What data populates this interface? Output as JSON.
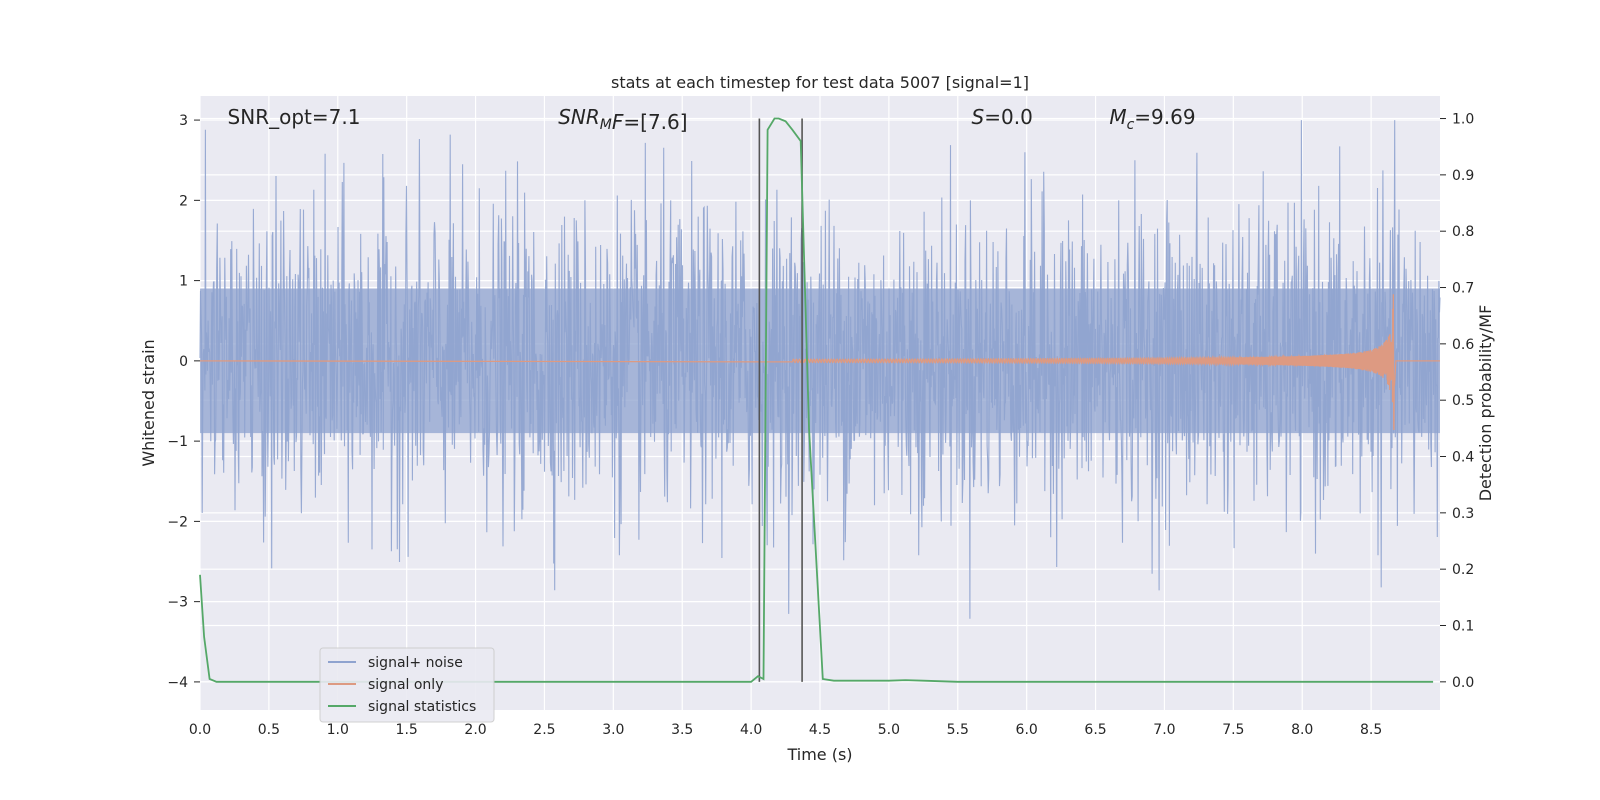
{
  "chart_data": {
    "type": "line",
    "title": "stats at each timestep for test data 5007 [signal=1]",
    "xlabel": "Time (s)",
    "ylabel_left": "Whitened strain",
    "ylabel_right": "Detection probability/MF",
    "xlim": [
      0,
      9.0
    ],
    "ylim_left": [
      -4.35,
      3.3
    ],
    "ylim_right": [
      -0.05,
      1.04
    ],
    "x_ticks": [
      0.0,
      0.5,
      1.0,
      1.5,
      2.0,
      2.5,
      3.0,
      3.5,
      4.0,
      4.5,
      5.0,
      5.5,
      6.0,
      6.5,
      7.0,
      7.5,
      8.0,
      8.5
    ],
    "x_tick_labels": [
      "0.0",
      "0.5",
      "1.0",
      "1.5",
      "2.0",
      "2.5",
      "3.0",
      "3.5",
      "4.0",
      "4.5",
      "5.0",
      "5.5",
      "6.0",
      "6.5",
      "7.0",
      "7.5",
      "8.0",
      "8.5"
    ],
    "y_left_ticks": [
      -4,
      -3,
      -2,
      -1,
      0,
      1,
      2,
      3
    ],
    "y_left_tick_labels": [
      "−4",
      "−3",
      "−2",
      "−1",
      "0",
      "1",
      "2",
      "3"
    ],
    "y_right_ticks": [
      0.0,
      0.1,
      0.2,
      0.3,
      0.4,
      0.5,
      0.6,
      0.7,
      0.8,
      0.9,
      1.0
    ],
    "y_right_tick_labels": [
      "0.0",
      "0.1",
      "0.2",
      "0.3",
      "0.4",
      "0.5",
      "0.6",
      "0.7",
      "0.8",
      "0.9",
      "1.0"
    ],
    "grid": true,
    "legend_position": "lower-left",
    "series": [
      {
        "name": "signal+ noise",
        "axis": "left",
        "color": "#8fa3cf",
        "style": "gaussian noise envelope, typical amplitude about ±2, peaks near 3 and -4"
      },
      {
        "name": "signal only",
        "axis": "left",
        "color": "#dd9a82",
        "chirp": {
          "t_start": 4.3,
          "t_merge": 8.67,
          "amp_start": 0.02,
          "amp_peak": 0.9
        }
      },
      {
        "name": "signal statistics",
        "axis": "right",
        "color": "#55a868",
        "x": [
          0.0,
          0.03,
          0.07,
          0.12,
          0.5,
          1.0,
          1.5,
          2.0,
          2.5,
          3.0,
          3.5,
          4.0,
          4.05,
          4.09,
          4.12,
          4.17,
          4.2,
          4.25,
          4.3,
          4.36,
          4.42,
          4.52,
          4.6,
          5.0,
          5.12,
          5.25,
          5.5,
          6.0,
          6.5,
          7.0,
          7.5,
          8.0,
          8.5,
          8.95
        ],
        "y": [
          0.19,
          0.08,
          0.005,
          0.0,
          0.0,
          0.0,
          0.0,
          0.0,
          0.0,
          0.0,
          0.0,
          0.0,
          0.01,
          0.005,
          0.98,
          1.0,
          1.0,
          0.995,
          0.98,
          0.96,
          0.45,
          0.005,
          0.002,
          0.002,
          0.003,
          0.002,
          0.0,
          0.0,
          0.0,
          0.0,
          0.0,
          0.0,
          0.0,
          0.0
        ]
      }
    ],
    "vertical_lines": [
      {
        "x": 4.06,
        "color": "#555555"
      },
      {
        "x": 4.37,
        "color": "#555555"
      }
    ],
    "annotations": [
      {
        "id": "snr-opt",
        "text": "SNR_opt=7.1",
        "x": 0.2
      },
      {
        "id": "snr-mf",
        "main": "SNR",
        "sub": "M",
        "rest": "F=[7.6]",
        "x": 2.6
      },
      {
        "id": "s-value",
        "main": "S",
        "sub": "",
        "rest": "=0.0",
        "x": 5.6
      },
      {
        "id": "mc-value",
        "main": "M",
        "sub": "c",
        "rest": "=9.69",
        "x": 6.6
      }
    ]
  }
}
